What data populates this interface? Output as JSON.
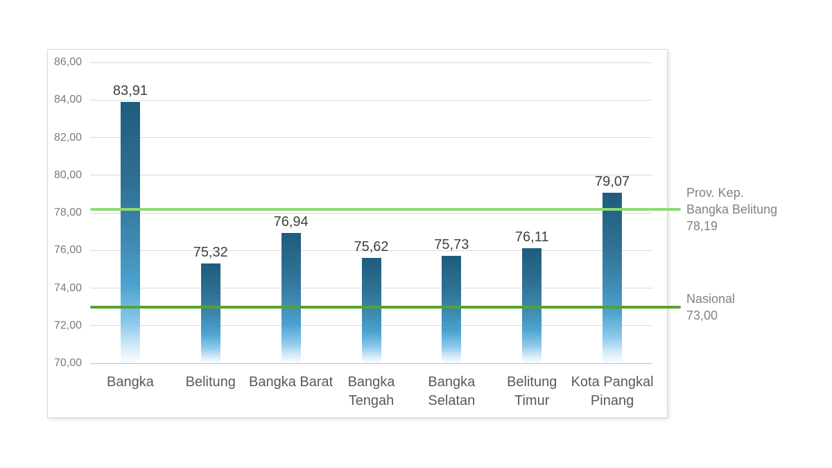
{
  "chart_data": {
    "type": "bar",
    "title": "",
    "categories": [
      "Bangka",
      "Belitung",
      "Bangka Barat",
      "Bangka Tengah",
      "Bangka Selatan",
      "Belitung Timur",
      "Kota Pangkal Pinang"
    ],
    "category_display_labels": [
      "Bangka",
      "Belitung",
      "Bangka Barat",
      "Bangka\nTengah",
      "Bangka\nSelatan",
      "Belitung\nTimur",
      "Kota Pangkal\nPinang"
    ],
    "values": [
      83.91,
      75.32,
      76.94,
      75.62,
      75.73,
      76.11,
      79.07
    ],
    "value_labels": [
      "83,91",
      "75,32",
      "76,94",
      "75,62",
      "75,73",
      "76,11",
      "79,07"
    ],
    "xlabel": "",
    "ylabel": "",
    "ylim": [
      70,
      86
    ],
    "grid": true,
    "legend_position": "none",
    "y_axis": {
      "min": 70,
      "max": 86,
      "step": 2,
      "ticks": [
        {
          "value": 86,
          "label": "86,00"
        },
        {
          "value": 84,
          "label": "84,00"
        },
        {
          "value": 82,
          "label": "82,00"
        },
        {
          "value": 80,
          "label": "80,00"
        },
        {
          "value": 78,
          "label": "78,00"
        },
        {
          "value": 76,
          "label": "76,00"
        },
        {
          "value": 74,
          "label": "74,00"
        },
        {
          "value": 72,
          "label": "72,00"
        },
        {
          "value": 70,
          "label": "70,00"
        }
      ]
    },
    "reference_lines": [
      {
        "name": "provinsi",
        "value": 78.19,
        "color": "#8ed973",
        "annotation": "Prov. Kep.\nBangka Belitung\n78,19"
      },
      {
        "name": "nasional",
        "value": 73.0,
        "color": "#55a22f",
        "annotation": "Nasional\n73,00"
      }
    ]
  },
  "style": {
    "colors": {
      "background": "#ffffff",
      "frame_border": "#d8d8d8",
      "gridline": "#d9d9d9",
      "axis_line": "#bfbfbf",
      "tick_label": "#7a7a7a",
      "category_label": "#595959",
      "value_label": "#3f3f3f",
      "annotation_text": "#828282",
      "bar_gradient_stops": [
        "#1f5c7d",
        "#2e7093",
        "#3e88b0",
        "#4ba2cf",
        "#8fcaec",
        "#d9edf9",
        "#fbfdff"
      ],
      "bar_gradient_percents": [
        0,
        30,
        52,
        70,
        85,
        94,
        100
      ]
    }
  }
}
